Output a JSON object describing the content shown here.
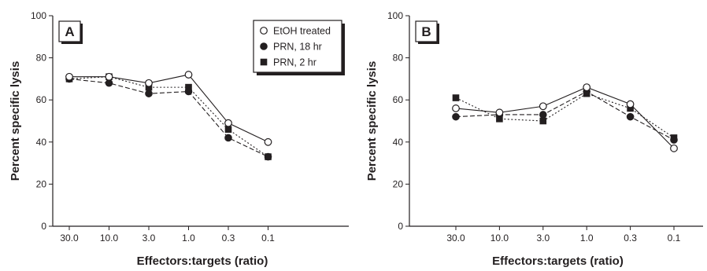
{
  "chart_data": [
    {
      "type": "line",
      "panel_label": "A",
      "categories": [
        "30.0",
        "10.0",
        "3.0",
        "1.0",
        "0.3",
        "0.1"
      ],
      "xlabel": "Effectors:targets (ratio)",
      "ylabel": "Percent specific lysis",
      "ylim": [
        0,
        100
      ],
      "yticks": [
        0,
        20,
        40,
        60,
        80,
        100
      ],
      "grid": false,
      "legend_position": "top-right",
      "series": [
        {
          "name": "EtOH treated",
          "marker": "open-circle",
          "line": "solid",
          "values": [
            71,
            71,
            68,
            72,
            49,
            40
          ]
        },
        {
          "name": "PRN, 18 hr",
          "marker": "filled-circle",
          "line": "dashed",
          "values": [
            70,
            68,
            63,
            64,
            42,
            33
          ]
        },
        {
          "name": "PRN, 2 hr",
          "marker": "filled-square",
          "line": "dotted",
          "values": [
            70,
            71,
            66,
            66,
            46,
            33
          ]
        }
      ]
    },
    {
      "type": "line",
      "panel_label": "B",
      "categories": [
        "30.0",
        "10.0",
        "3.0",
        "1.0",
        "0.3",
        "0.1"
      ],
      "xlabel": "Effectors:targets (ratio)",
      "ylabel": "Percent specific lysis",
      "ylim": [
        0,
        100
      ],
      "yticks": [
        0,
        20,
        40,
        60,
        80,
        100
      ],
      "grid": false,
      "series": [
        {
          "marker": "open-circle",
          "line": "solid",
          "values": [
            56,
            54,
            57,
            66,
            58,
            37
          ]
        },
        {
          "marker": "filled-circle",
          "line": "dashed",
          "values": [
            52,
            53,
            53,
            64,
            52,
            41
          ]
        },
        {
          "marker": "filled-square",
          "line": "dotted",
          "values": [
            61,
            51,
            50,
            63,
            56,
            42
          ]
        }
      ]
    }
  ]
}
